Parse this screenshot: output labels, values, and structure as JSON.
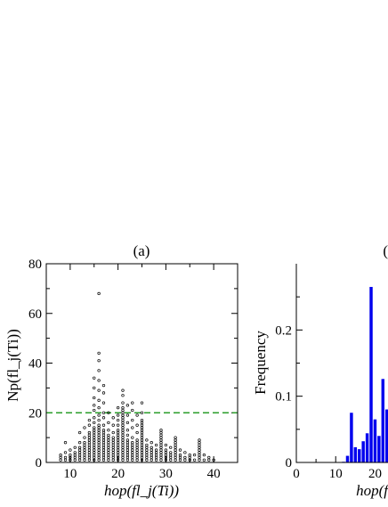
{
  "chart_data": [
    {
      "panel": "(a)",
      "type": "scatter",
      "xlabel": "hop(fl_j(Ti))",
      "ylabel": "Np(fl_j(Ti))",
      "xlim": [
        5,
        45
      ],
      "ylim": [
        0,
        80
      ],
      "xticks": [
        10,
        20,
        30,
        40
      ],
      "yticks": [
        0,
        20,
        40,
        60,
        80
      ],
      "threshold_line": {
        "y": 20,
        "color": "#2a9d2a",
        "style": "dashed"
      },
      "marker_color": "#000000",
      "points": [
        [
          8,
          1
        ],
        [
          8,
          2
        ],
        [
          8,
          3
        ],
        [
          9,
          1
        ],
        [
          9,
          2
        ],
        [
          9,
          4
        ],
        [
          9,
          8
        ],
        [
          10,
          1
        ],
        [
          10,
          2
        ],
        [
          10,
          3
        ],
        [
          10,
          5
        ],
        [
          11,
          1
        ],
        [
          11,
          2
        ],
        [
          11,
          3
        ],
        [
          11,
          4
        ],
        [
          11,
          6
        ],
        [
          12,
          1
        ],
        [
          12,
          2
        ],
        [
          12,
          3
        ],
        [
          12,
          4
        ],
        [
          12,
          5
        ],
        [
          12,
          6
        ],
        [
          12,
          8
        ],
        [
          12,
          12
        ],
        [
          13,
          1
        ],
        [
          13,
          2
        ],
        [
          13,
          3
        ],
        [
          13,
          4
        ],
        [
          13,
          5
        ],
        [
          13,
          6
        ],
        [
          13,
          7
        ],
        [
          13,
          8
        ],
        [
          13,
          10
        ],
        [
          13,
          14
        ],
        [
          14,
          1
        ],
        [
          14,
          2
        ],
        [
          14,
          3
        ],
        [
          14,
          4
        ],
        [
          14,
          5
        ],
        [
          14,
          6
        ],
        [
          14,
          7
        ],
        [
          14,
          8
        ],
        [
          14,
          9
        ],
        [
          14,
          10
        ],
        [
          14,
          11
        ],
        [
          14,
          12
        ],
        [
          14,
          15
        ],
        [
          14,
          17
        ],
        [
          15,
          1
        ],
        [
          15,
          2
        ],
        [
          15,
          3
        ],
        [
          15,
          4
        ],
        [
          15,
          5
        ],
        [
          15,
          6
        ],
        [
          15,
          7
        ],
        [
          15,
          8
        ],
        [
          15,
          9
        ],
        [
          15,
          10
        ],
        [
          15,
          11
        ],
        [
          15,
          12
        ],
        [
          15,
          13
        ],
        [
          15,
          14
        ],
        [
          15,
          16
        ],
        [
          15,
          18
        ],
        [
          15,
          21
        ],
        [
          15,
          23
        ],
        [
          15,
          26
        ],
        [
          15,
          30
        ],
        [
          15,
          34
        ],
        [
          16,
          1
        ],
        [
          16,
          2
        ],
        [
          16,
          3
        ],
        [
          16,
          4
        ],
        [
          16,
          5
        ],
        [
          16,
          6
        ],
        [
          16,
          7
        ],
        [
          16,
          8
        ],
        [
          16,
          9
        ],
        [
          16,
          10
        ],
        [
          16,
          11
        ],
        [
          16,
          12
        ],
        [
          16,
          13
        ],
        [
          16,
          14
        ],
        [
          16,
          15
        ],
        [
          16,
          17
        ],
        [
          16,
          19
        ],
        [
          16,
          22
        ],
        [
          16,
          25
        ],
        [
          16,
          29
        ],
        [
          16,
          33
        ],
        [
          16,
          37
        ],
        [
          16,
          41
        ],
        [
          16,
          44
        ],
        [
          16,
          68
        ],
        [
          17,
          1
        ],
        [
          17,
          2
        ],
        [
          17,
          3
        ],
        [
          17,
          4
        ],
        [
          17,
          5
        ],
        [
          17,
          6
        ],
        [
          17,
          7
        ],
        [
          17,
          8
        ],
        [
          17,
          9
        ],
        [
          17,
          10
        ],
        [
          17,
          11
        ],
        [
          17,
          12
        ],
        [
          17,
          13
        ],
        [
          17,
          15
        ],
        [
          17,
          18
        ],
        [
          17,
          20
        ],
        [
          17,
          24
        ],
        [
          17,
          28
        ],
        [
          17,
          31
        ],
        [
          18,
          1
        ],
        [
          18,
          2
        ],
        [
          18,
          3
        ],
        [
          18,
          4
        ],
        [
          18,
          5
        ],
        [
          18,
          6
        ],
        [
          18,
          7
        ],
        [
          18,
          8
        ],
        [
          18,
          9
        ],
        [
          18,
          10
        ],
        [
          18,
          11
        ],
        [
          18,
          13
        ],
        [
          18,
          16
        ],
        [
          18,
          20
        ],
        [
          19,
          1
        ],
        [
          19,
          2
        ],
        [
          19,
          3
        ],
        [
          19,
          4
        ],
        [
          19,
          5
        ],
        [
          19,
          6
        ],
        [
          19,
          7
        ],
        [
          19,
          8
        ],
        [
          19,
          9
        ],
        [
          19,
          10
        ],
        [
          19,
          12
        ],
        [
          19,
          15
        ],
        [
          19,
          18
        ],
        [
          20,
          1
        ],
        [
          20,
          2
        ],
        [
          20,
          3
        ],
        [
          20,
          4
        ],
        [
          20,
          5
        ],
        [
          20,
          6
        ],
        [
          20,
          7
        ],
        [
          20,
          8
        ],
        [
          20,
          9
        ],
        [
          20,
          10
        ],
        [
          20,
          11
        ],
        [
          20,
          12
        ],
        [
          20,
          13
        ],
        [
          20,
          15
        ],
        [
          20,
          17
        ],
        [
          20,
          19
        ],
        [
          20,
          22
        ],
        [
          21,
          1
        ],
        [
          21,
          2
        ],
        [
          21,
          3
        ],
        [
          21,
          4
        ],
        [
          21,
          5
        ],
        [
          21,
          6
        ],
        [
          21,
          7
        ],
        [
          21,
          8
        ],
        [
          21,
          9
        ],
        [
          21,
          10
        ],
        [
          21,
          11
        ],
        [
          21,
          12
        ],
        [
          21,
          13
        ],
        [
          21,
          14
        ],
        [
          21,
          15
        ],
        [
          21,
          16
        ],
        [
          21,
          17
        ],
        [
          21,
          18
        ],
        [
          21,
          19
        ],
        [
          21,
          20
        ],
        [
          21,
          21
        ],
        [
          21,
          22
        ],
        [
          21,
          24
        ],
        [
          21,
          27
        ],
        [
          21,
          29
        ],
        [
          22,
          1
        ],
        [
          22,
          2
        ],
        [
          22,
          3
        ],
        [
          22,
          4
        ],
        [
          22,
          5
        ],
        [
          22,
          6
        ],
        [
          22,
          7
        ],
        [
          22,
          8
        ],
        [
          22,
          9
        ],
        [
          22,
          11
        ],
        [
          22,
          13
        ],
        [
          22,
          16
        ],
        [
          22,
          19
        ],
        [
          22,
          23
        ],
        [
          23,
          1
        ],
        [
          23,
          2
        ],
        [
          23,
          3
        ],
        [
          23,
          4
        ],
        [
          23,
          5
        ],
        [
          23,
          6
        ],
        [
          23,
          7
        ],
        [
          23,
          8
        ],
        [
          23,
          10
        ],
        [
          23,
          14
        ],
        [
          23,
          17
        ],
        [
          23,
          21
        ],
        [
          23,
          24
        ],
        [
          24,
          1
        ],
        [
          24,
          2
        ],
        [
          24,
          3
        ],
        [
          24,
          4
        ],
        [
          24,
          5
        ],
        [
          24,
          6
        ],
        [
          24,
          7
        ],
        [
          24,
          8
        ],
        [
          24,
          9
        ],
        [
          24,
          12
        ],
        [
          24,
          15
        ],
        [
          24,
          19
        ],
        [
          25,
          1
        ],
        [
          25,
          2
        ],
        [
          25,
          3
        ],
        [
          25,
          4
        ],
        [
          25,
          5
        ],
        [
          25,
          6
        ],
        [
          25,
          7
        ],
        [
          25,
          8
        ],
        [
          25,
          9
        ],
        [
          25,
          10
        ],
        [
          25,
          11
        ],
        [
          25,
          12
        ],
        [
          25,
          13
        ],
        [
          25,
          14
        ],
        [
          25,
          15
        ],
        [
          25,
          16
        ],
        [
          25,
          17
        ],
        [
          25,
          20
        ],
        [
          25,
          24
        ],
        [
          26,
          1
        ],
        [
          26,
          2
        ],
        [
          26,
          3
        ],
        [
          26,
          4
        ],
        [
          26,
          5
        ],
        [
          26,
          6
        ],
        [
          26,
          7
        ],
        [
          26,
          9
        ],
        [
          27,
          1
        ],
        [
          27,
          2
        ],
        [
          27,
          3
        ],
        [
          27,
          4
        ],
        [
          27,
          5
        ],
        [
          27,
          6
        ],
        [
          27,
          8
        ],
        [
          28,
          1
        ],
        [
          28,
          2
        ],
        [
          28,
          3
        ],
        [
          28,
          4
        ],
        [
          28,
          5
        ],
        [
          28,
          7
        ],
        [
          29,
          1
        ],
        [
          29,
          2
        ],
        [
          29,
          3
        ],
        [
          29,
          4
        ],
        [
          29,
          5
        ],
        [
          29,
          6
        ],
        [
          29,
          7
        ],
        [
          29,
          8
        ],
        [
          29,
          9
        ],
        [
          29,
          10
        ],
        [
          29,
          11
        ],
        [
          29,
          12
        ],
        [
          29,
          13
        ],
        [
          30,
          1
        ],
        [
          30,
          2
        ],
        [
          30,
          3
        ],
        [
          30,
          4
        ],
        [
          30,
          5
        ],
        [
          30,
          7
        ],
        [
          31,
          1
        ],
        [
          31,
          2
        ],
        [
          31,
          3
        ],
        [
          31,
          4
        ],
        [
          31,
          6
        ],
        [
          32,
          1
        ],
        [
          32,
          2
        ],
        [
          32,
          3
        ],
        [
          32,
          4
        ],
        [
          32,
          5
        ],
        [
          32,
          6
        ],
        [
          32,
          7
        ],
        [
          32,
          8
        ],
        [
          32,
          9
        ],
        [
          32,
          10
        ],
        [
          33,
          1
        ],
        [
          33,
          2
        ],
        [
          33,
          3
        ],
        [
          33,
          5
        ],
        [
          34,
          1
        ],
        [
          34,
          2
        ],
        [
          34,
          4
        ],
        [
          35,
          1
        ],
        [
          35,
          2
        ],
        [
          35,
          3
        ],
        [
          36,
          1
        ],
        [
          36,
          3
        ],
        [
          37,
          1
        ],
        [
          37,
          2
        ],
        [
          37,
          3
        ],
        [
          37,
          4
        ],
        [
          37,
          5
        ],
        [
          37,
          6
        ],
        [
          37,
          7
        ],
        [
          37,
          8
        ],
        [
          37,
          9
        ],
        [
          38,
          1
        ],
        [
          38,
          3
        ],
        [
          39,
          1
        ],
        [
          39,
          2
        ],
        [
          40,
          1
        ]
      ]
    },
    {
      "panel": "(",
      "type": "bar",
      "xlabel": "hop(f",
      "ylabel": "Frequency",
      "xlim": [
        0,
        45
      ],
      "ylim": [
        0,
        0.3
      ],
      "xticks": [
        0,
        10,
        20
      ],
      "yticks": [
        0,
        0.1,
        0.2
      ],
      "ytick_labels": [
        "0",
        "0.1",
        "0.2"
      ],
      "bar_color": "#0000ee",
      "bars": [
        {
          "x": 12,
          "value": 0.001
        },
        {
          "x": 13,
          "value": 0.01
        },
        {
          "x": 14,
          "value": 0.075
        },
        {
          "x": 15,
          "value": 0.023
        },
        {
          "x": 16,
          "value": 0.02
        },
        {
          "x": 17,
          "value": 0.032
        },
        {
          "x": 18,
          "value": 0.044
        },
        {
          "x": 19,
          "value": 0.265
        },
        {
          "x": 20,
          "value": 0.065
        },
        {
          "x": 21,
          "value": 0.04
        },
        {
          "x": 22,
          "value": 0.126
        },
        {
          "x": 23,
          "value": 0.08
        },
        {
          "x": 24,
          "value": 0.035
        }
      ]
    }
  ]
}
